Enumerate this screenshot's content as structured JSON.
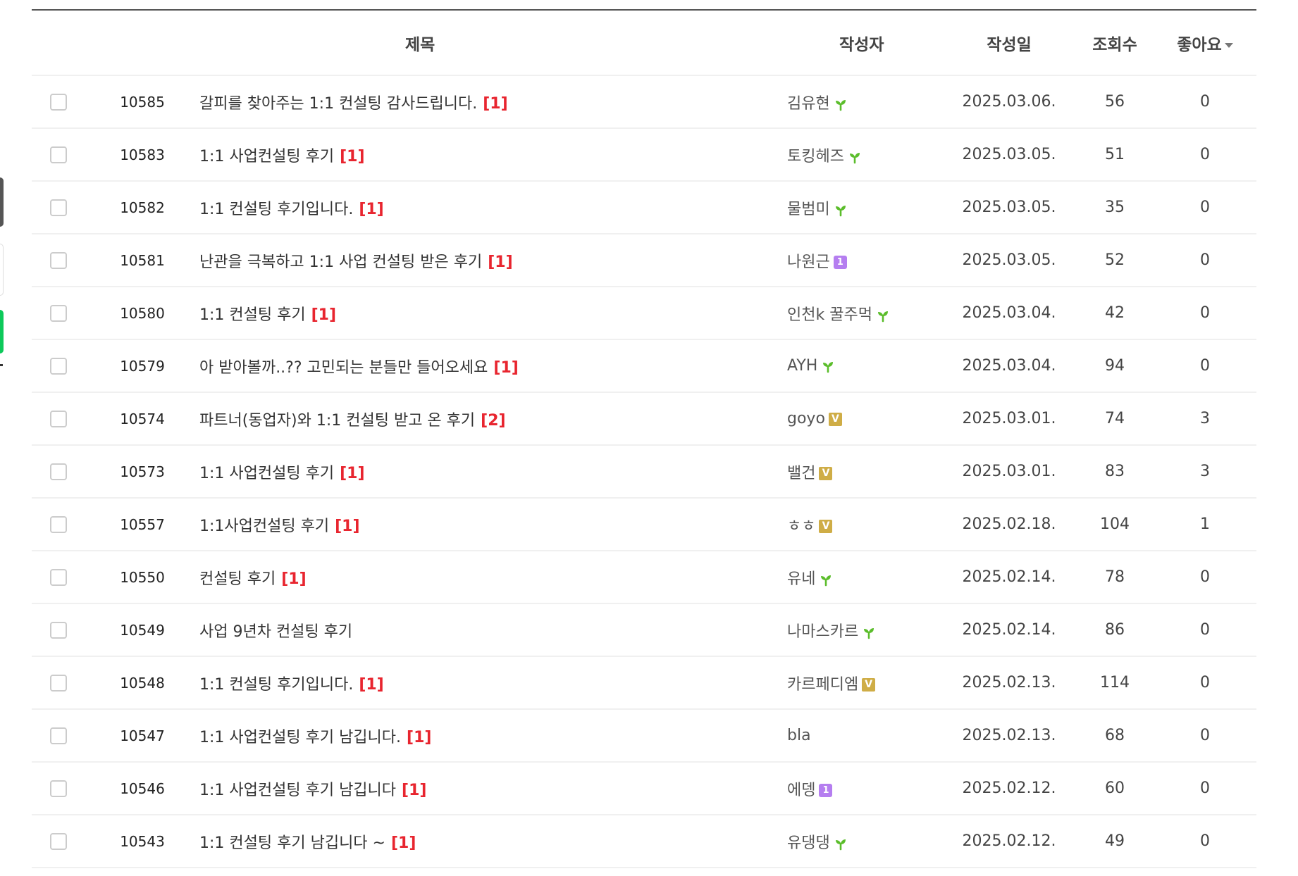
{
  "header": {
    "title": "제목",
    "author": "작성자",
    "date": "작성일",
    "views": "조회수",
    "likes": "좋아요"
  },
  "colors": {
    "comment_count": "#e8252f",
    "sprout": "#5bbd2b",
    "level_badge": "#b57ef0",
    "vip_badge": "#cfad46"
  },
  "rows": [
    {
      "no": "10585",
      "title": "갈피를 찾아주는 1:1 컨설팅 감사드립니다.",
      "comments": "[1]",
      "author": "김유현",
      "badge": "sprout",
      "date": "2025.03.06.",
      "views": "56",
      "likes": "0"
    },
    {
      "no": "10583",
      "title": "1:1 사업컨설팅 후기",
      "comments": "[1]",
      "author": "토킹헤즈",
      "badge": "sprout",
      "date": "2025.03.05.",
      "views": "51",
      "likes": "0"
    },
    {
      "no": "10582",
      "title": "1:1 컨설팅 후기입니다.",
      "comments": "[1]",
      "author": "물범미",
      "badge": "sprout",
      "date": "2025.03.05.",
      "views": "35",
      "likes": "0"
    },
    {
      "no": "10581",
      "title": "난관을 극복하고 1:1 사업 컨설팅 받은 후기",
      "comments": "[1]",
      "author": "나원근",
      "badge": "level",
      "badge_text": "1",
      "date": "2025.03.05.",
      "views": "52",
      "likes": "0"
    },
    {
      "no": "10580",
      "title": "1:1 컨설팅 후기",
      "comments": "[1]",
      "author": "인천k 꿀주먹",
      "badge": "sprout",
      "date": "2025.03.04.",
      "views": "42",
      "likes": "0"
    },
    {
      "no": "10579",
      "title": "아 받아볼까..?? 고민되는 분들만 들어오세요",
      "comments": "[1]",
      "author": "AYH",
      "badge": "sprout",
      "date": "2025.03.04.",
      "views": "94",
      "likes": "0"
    },
    {
      "no": "10574",
      "title": "파트너(동업자)와 1:1 컨설팅 받고 온 후기",
      "comments": "[2]",
      "author": "goyo",
      "badge": "vip",
      "badge_text": "V",
      "date": "2025.03.01.",
      "views": "74",
      "likes": "3"
    },
    {
      "no": "10573",
      "title": "1:1 사업컨설팅 후기",
      "comments": "[1]",
      "author": "밸건",
      "badge": "vip",
      "badge_text": "V",
      "date": "2025.03.01.",
      "views": "83",
      "likes": "3"
    },
    {
      "no": "10557",
      "title": "1:1사업컨설팅 후기",
      "comments": "[1]",
      "author": "ㅎㅎ",
      "badge": "vip",
      "badge_text": "V",
      "date": "2025.02.18.",
      "views": "104",
      "likes": "1"
    },
    {
      "no": "10550",
      "title": "컨설팅 후기",
      "comments": "[1]",
      "author": "유네",
      "badge": "sprout",
      "date": "2025.02.14.",
      "views": "78",
      "likes": "0"
    },
    {
      "no": "10549",
      "title": "사업 9년차 컨설팅 후기",
      "comments": "",
      "author": "나마스카르",
      "badge": "sprout",
      "date": "2025.02.14.",
      "views": "86",
      "likes": "0"
    },
    {
      "no": "10548",
      "title": "1:1 컨설팅 후기입니다.",
      "comments": "[1]",
      "author": "카르페디엠",
      "badge": "vip",
      "badge_text": "V",
      "date": "2025.02.13.",
      "views": "114",
      "likes": "0"
    },
    {
      "no": "10547",
      "title": "1:1 사업컨설팅 후기 남깁니다.",
      "comments": "[1]",
      "author": "bla",
      "badge": "",
      "date": "2025.02.13.",
      "views": "68",
      "likes": "0"
    },
    {
      "no": "10546",
      "title": "1:1 사업컨설팅 후기 남깁니다",
      "comments": "[1]",
      "author": "에뎅",
      "badge": "level",
      "badge_text": "1",
      "date": "2025.02.12.",
      "views": "60",
      "likes": "0"
    },
    {
      "no": "10543",
      "title": "1:1 컨설팅 후기 남깁니다 ~",
      "comments": "[1]",
      "author": "유댕댕",
      "badge": "sprout",
      "date": "2025.02.12.",
      "views": "49",
      "likes": "0"
    }
  ]
}
